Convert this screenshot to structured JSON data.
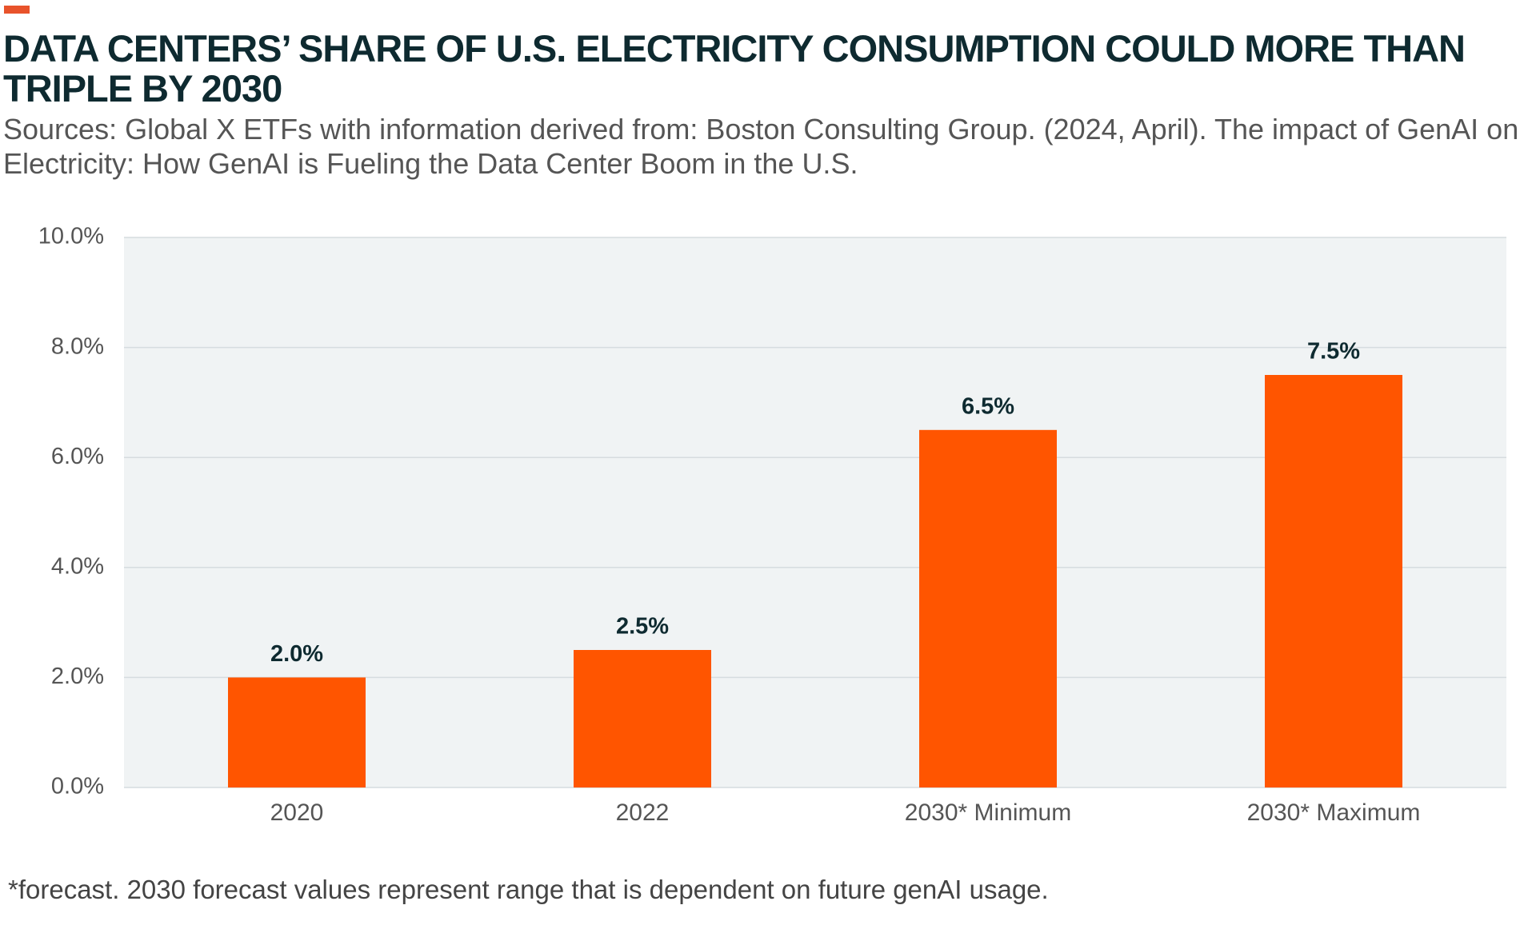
{
  "chart_data": {
    "type": "bar",
    "title": "DATA CENTERS’ SHARE OF U.S. ELECTRICITY CONSUMPTION COULD MORE THAN TRIPLE BY 2030",
    "subtitle": "Sources: Global X ETFs with information derived from: Boston Consulting Group. (2024, April). The impact of GenAI on Electricity: How GenAI is Fueling the Data Center Boom in the U.S.",
    "categories": [
      "2020",
      "2022",
      "2030* Minimum",
      "2030* Maximum"
    ],
    "values": [
      2.0,
      2.5,
      6.5,
      7.5
    ],
    "value_labels": [
      "2.0%",
      "2.5%",
      "6.5%",
      "7.5%"
    ],
    "color": "#ff5500",
    "ylim": [
      0,
      10
    ],
    "yticks": [
      {
        "value": 0,
        "label": "0.0%"
      },
      {
        "value": 2,
        "label": "2.0%"
      },
      {
        "value": 4,
        "label": "4.0%"
      },
      {
        "value": 6,
        "label": "6.0%"
      },
      {
        "value": 8,
        "label": "8.0%"
      },
      {
        "value": 10,
        "label": "10.0%"
      }
    ],
    "grid": true,
    "footnote": "*forecast. 2030 forecast values represent range that is dependent on future genAI usage."
  }
}
